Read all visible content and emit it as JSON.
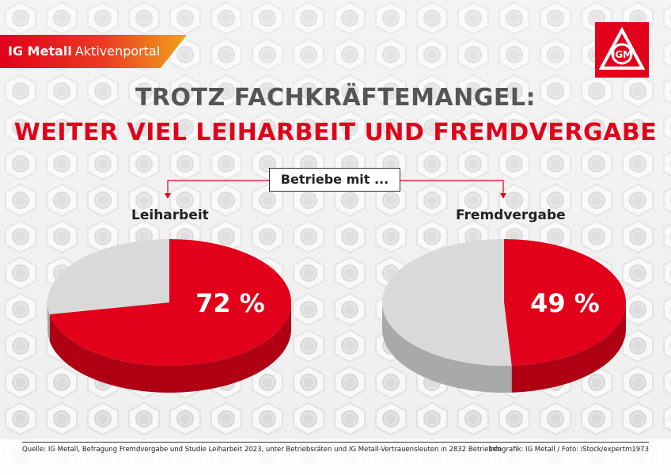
{
  "banner": {
    "brand": "IG Metall",
    "portal": "Aktivenportal"
  },
  "logo": {
    "icon": "ig-metall-logo-icon",
    "text": "IGM"
  },
  "title": {
    "line1": "TROTZ FACHKRÄFTEMANGEL:",
    "line2": "WEITER VIEL LEIHARBEIT UND FREMDVERGABE"
  },
  "subtitle_box": "Betriebe mit ...",
  "chart_data": [
    {
      "type": "pie",
      "title": "Leiharbeit",
      "categories": [
        "",
        ""
      ],
      "values": [
        72,
        28
      ],
      "unit": "%",
      "data_label": "72 %",
      "colors": [
        "#e2001a",
        "#d9d9d9"
      ]
    },
    {
      "type": "pie",
      "title": "Fremdvergabe",
      "categories": [
        "",
        ""
      ],
      "values": [
        49,
        51
      ],
      "unit": "%",
      "data_label": "49 %",
      "colors": [
        "#e2001a",
        "#d9d9d9"
      ]
    }
  ],
  "footer": {
    "source": "Quelle: IG Metall, Befragung Fremdvergabe und Studie Leiharbeit 2023, unter Betriebsräten und IG Metall-Vertrauensleuten in 2832 Betrieben",
    "credit": "Infografik: IG Metall / Foto: iStock/expertm1973"
  }
}
